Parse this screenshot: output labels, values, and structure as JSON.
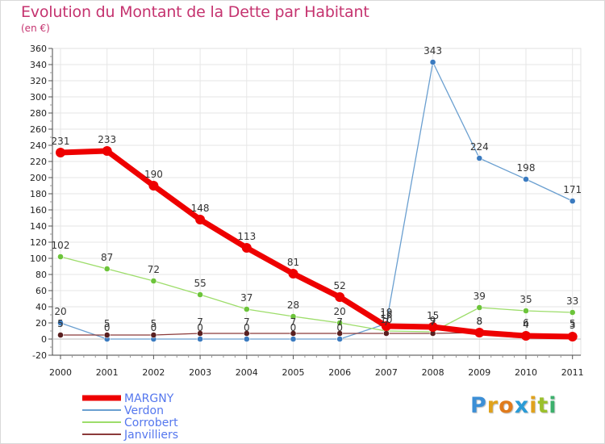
{
  "header": {
    "title": "Evolution du Montant de la Dette par Habitant",
    "subtitle": "(en €)"
  },
  "logo": {
    "letters": [
      "P",
      "r",
      "o",
      "x",
      "i",
      "t",
      "i"
    ],
    "colors": [
      "#3c8fd6",
      "#e0a21c",
      "#e07b1c",
      "#2a9bd6",
      "#e0a21c",
      "#9bc02c",
      "#3cb06c"
    ]
  },
  "chart_data": {
    "type": "line",
    "title": "Evolution du Montant de la Dette par Habitant",
    "ylabel": "(en €)",
    "xlabel": "",
    "categories": [
      "2000",
      "2001",
      "2002",
      "2003",
      "2004",
      "2005",
      "2006",
      "2007",
      "2008",
      "2009",
      "2010",
      "2011"
    ],
    "ylim": [
      -20,
      360
    ],
    "yticks": [
      -20,
      0,
      20,
      40,
      60,
      80,
      100,
      120,
      140,
      160,
      180,
      200,
      220,
      240,
      260,
      280,
      300,
      320,
      340,
      360
    ],
    "grid": true,
    "legend_position": "bottom-left",
    "series": [
      {
        "name": "Verdon",
        "color": "#6a9fd0",
        "marker": "#3b7bc0",
        "thick": false,
        "values": [
          20,
          0,
          0,
          0,
          0,
          0,
          0,
          19,
          343,
          224,
          198,
          171
        ],
        "labels": [
          "20",
          "0",
          "0",
          "0",
          "0",
          "0",
          "0",
          "19",
          "343",
          "224",
          "198",
          "171"
        ]
      },
      {
        "name": "Corrobert",
        "color": "#9ddd6a",
        "marker": "#6cc43a",
        "thick": false,
        "values": [
          102,
          87,
          72,
          55,
          37,
          28,
          20,
          10,
          9,
          39,
          35,
          33
        ],
        "labels": [
          "102",
          "87",
          "72",
          "55",
          "37",
          "28",
          "20",
          "10",
          "9",
          "39",
          "35",
          "33"
        ]
      },
      {
        "name": "Janvilliers",
        "color": "#8b3a3a",
        "marker": "#5a1f1f",
        "thick": false,
        "values": [
          5,
          5,
          5,
          7,
          7,
          7,
          7,
          7,
          7,
          8,
          6,
          5
        ],
        "labels": [
          "5",
          "5",
          "5",
          "7",
          "7",
          "7",
          "7",
          "7",
          "7",
          "8",
          "6",
          "5"
        ]
      },
      {
        "name": "MARGNY",
        "color": "#ee0000",
        "marker": "#ee0000",
        "thick": true,
        "values": [
          231,
          233,
          190,
          148,
          113,
          81,
          52,
          16,
          15,
          8,
          4,
          3
        ],
        "labels": [
          "231",
          "233",
          "190",
          "148",
          "113",
          "81",
          "52",
          "16",
          "15",
          "8",
          "4",
          "3"
        ]
      }
    ],
    "legend_order": [
      "MARGNY",
      "Verdon",
      "Corrobert",
      "Janvilliers"
    ]
  }
}
